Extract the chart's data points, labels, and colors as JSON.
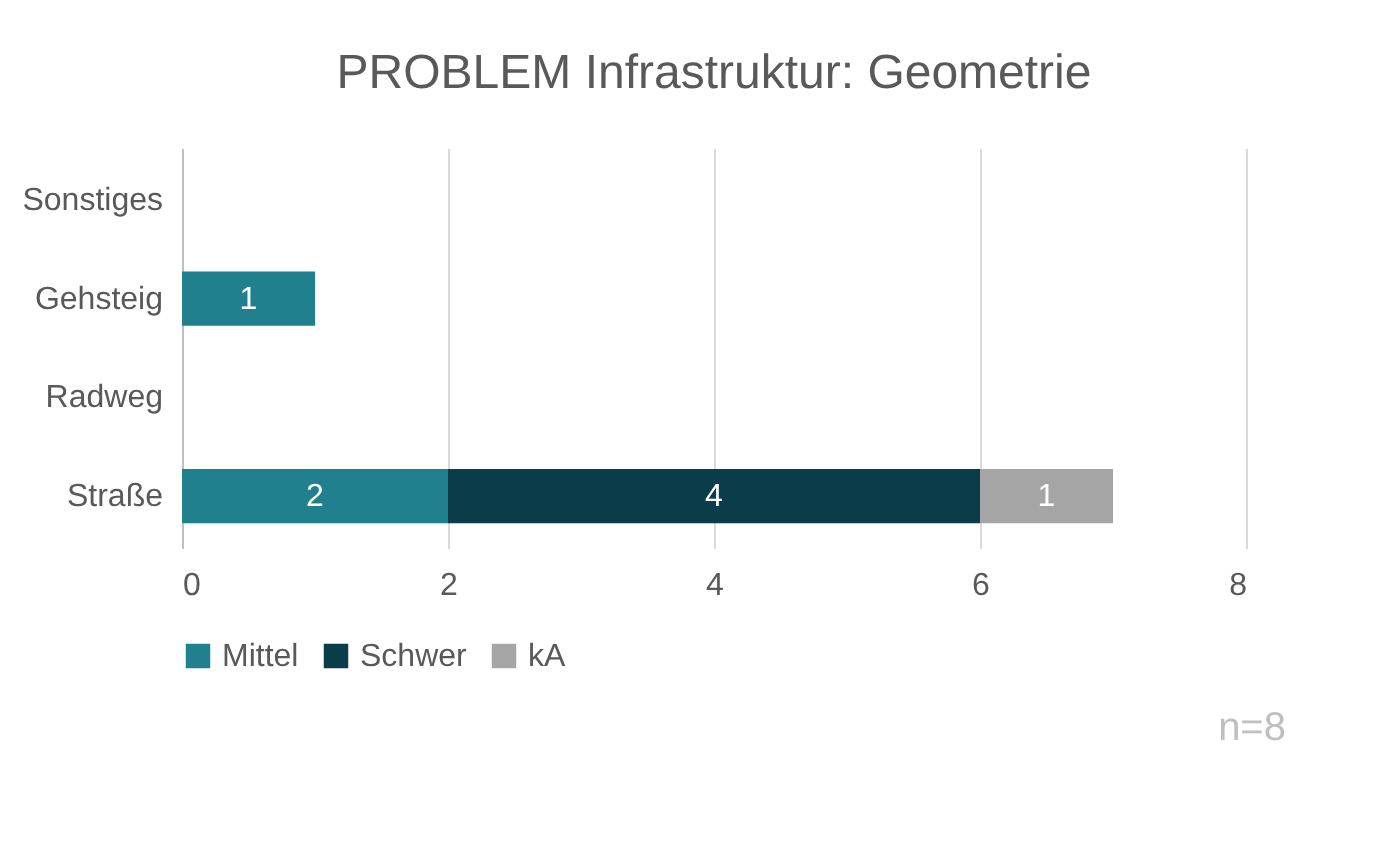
{
  "chart_data": {
    "type": "bar",
    "orientation": "horizontal",
    "stacked": true,
    "title": "PROBLEM Infrastruktur: Geometrie",
    "categories": [
      "Sonstiges",
      "Gehsteig",
      "Radweg",
      "Straße"
    ],
    "series": [
      {
        "name": "Mittel",
        "color": "#21808d",
        "values": [
          null,
          1,
          null,
          2
        ]
      },
      {
        "name": "Schwer",
        "color": "#0b3c49",
        "values": [
          null,
          null,
          null,
          4
        ]
      },
      {
        "name": "kA",
        "color": "#a5a5a5",
        "values": [
          null,
          null,
          null,
          1
        ]
      }
    ],
    "xlim": [
      0,
      8
    ],
    "xticks": [
      0,
      2,
      4,
      6,
      8
    ],
    "grid": "x",
    "legend": "bottom",
    "data_labels": true,
    "annotations": [
      "n=8"
    ]
  }
}
